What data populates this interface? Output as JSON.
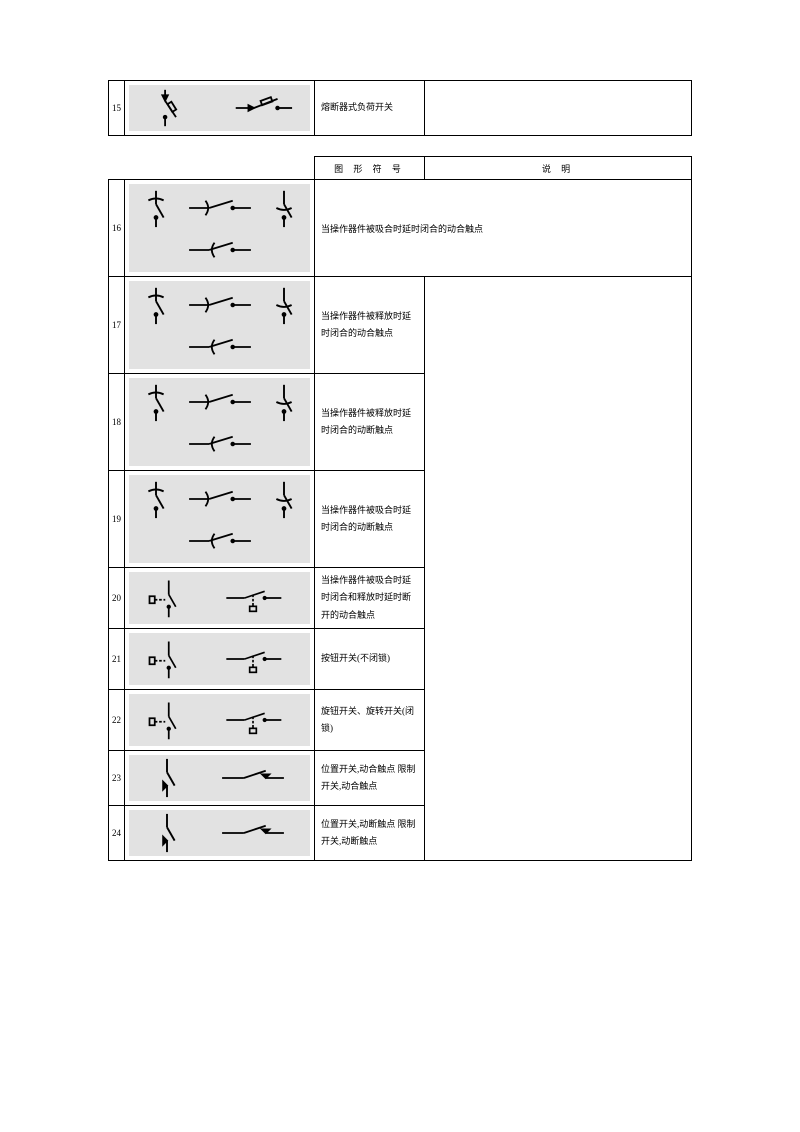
{
  "table1": {
    "row": {
      "num": "15",
      "name": "熔断器式负荷开关"
    }
  },
  "header2": {
    "col_sym": "图 形 符 号",
    "col_desc": "说  明"
  },
  "rows": [
    {
      "num": "16",
      "name": "当操作器件被吸合时延时闭合的动合触点",
      "wide": true,
      "h": "tall"
    },
    {
      "num": "17",
      "name": "当操作器件被释放时延时闭合的动合触点",
      "wide": false,
      "h": "tall"
    },
    {
      "num": "18",
      "name": "当操作器件被释放时延时闭合的动断触点",
      "wide": false,
      "h": "tall"
    },
    {
      "num": "19",
      "name": "当操作器件被吸合时延时闭合的动断触点",
      "wide": false,
      "h": "tall"
    },
    {
      "num": "20",
      "name": "当操作器件被吸合时延时闭合和释放时延时断开的动合触点",
      "wide": false,
      "h": "med"
    },
    {
      "num": "21",
      "name": "按钮开关(不闭锁)",
      "wide": false,
      "h": "med"
    },
    {
      "num": "22",
      "name": "旋钮开关、旋转开关(闭锁)",
      "wide": false,
      "h": "med"
    },
    {
      "num": "23",
      "name": "位置开关,动合触点 限制开关,动合触点",
      "wide": false,
      "h": "short"
    },
    {
      "num": "24",
      "name": "位置开关,动断触点 限制开关,动断触点",
      "wide": false,
      "h": "short"
    }
  ],
  "style": {
    "page_bg": "#ffffff",
    "symbox_bg": "#e2e2e2",
    "border": "#000000",
    "font_small": 9,
    "font_base": 10,
    "stroke": "#000000",
    "stroke_w": 2
  }
}
